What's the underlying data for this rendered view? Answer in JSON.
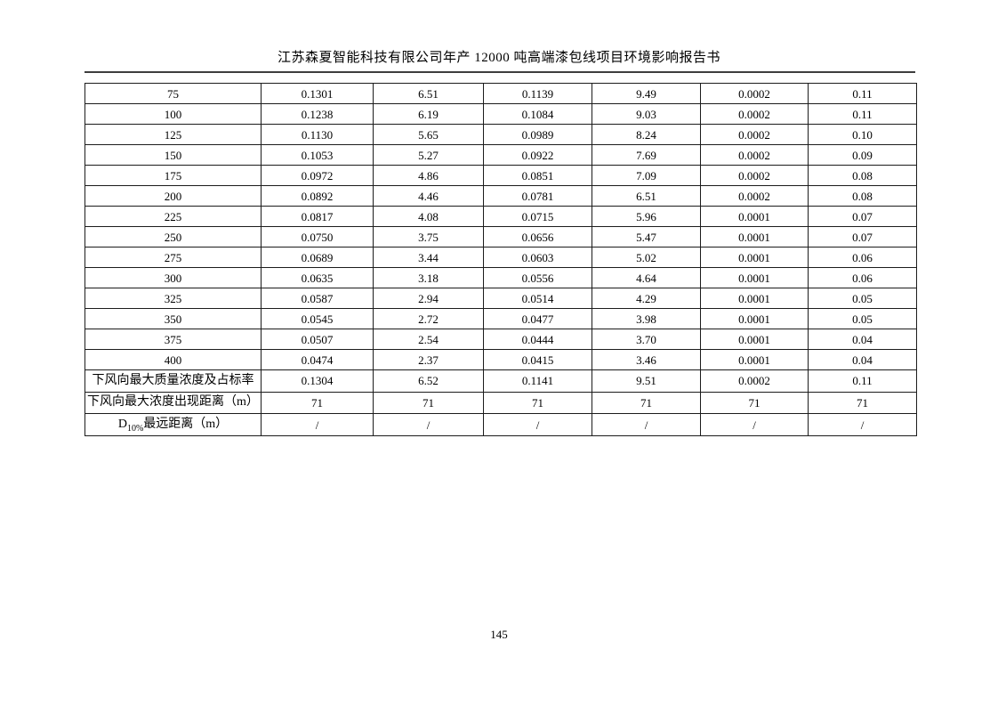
{
  "page": {
    "header_title": "江苏森夏智能科技有限公司年产 12000 吨高端漆包线项目环境影响报告书",
    "page_number": "145"
  },
  "table": {
    "rows": [
      {
        "cells": [
          "75",
          "0.1301",
          "6.51",
          "0.1139",
          "9.49",
          "0.0002",
          "0.11"
        ]
      },
      {
        "cells": [
          "100",
          "0.1238",
          "6.19",
          "0.1084",
          "9.03",
          "0.0002",
          "0.11"
        ]
      },
      {
        "cells": [
          "125",
          "0.1130",
          "5.65",
          "0.0989",
          "8.24",
          "0.0002",
          "0.10"
        ]
      },
      {
        "cells": [
          "150",
          "0.1053",
          "5.27",
          "0.0922",
          "7.69",
          "0.0002",
          "0.09"
        ]
      },
      {
        "cells": [
          "175",
          "0.0972",
          "4.86",
          "0.0851",
          "7.09",
          "0.0002",
          "0.08"
        ]
      },
      {
        "cells": [
          "200",
          "0.0892",
          "4.46",
          "0.0781",
          "6.51",
          "0.0002",
          "0.08"
        ]
      },
      {
        "cells": [
          "225",
          "0.0817",
          "4.08",
          "0.0715",
          "5.96",
          "0.0001",
          "0.07"
        ]
      },
      {
        "cells": [
          "250",
          "0.0750",
          "3.75",
          "0.0656",
          "5.47",
          "0.0001",
          "0.07"
        ]
      },
      {
        "cells": [
          "275",
          "0.0689",
          "3.44",
          "0.0603",
          "5.02",
          "0.0001",
          "0.06"
        ]
      },
      {
        "cells": [
          "300",
          "0.0635",
          "3.18",
          "0.0556",
          "4.64",
          "0.0001",
          "0.06"
        ]
      },
      {
        "cells": [
          "325",
          "0.0587",
          "2.94",
          "0.0514",
          "4.29",
          "0.0001",
          "0.05"
        ]
      },
      {
        "cells": [
          "350",
          "0.0545",
          "2.72",
          "0.0477",
          "3.98",
          "0.0001",
          "0.05"
        ]
      },
      {
        "cells": [
          "375",
          "0.0507",
          "2.54",
          "0.0444",
          "3.70",
          "0.0001",
          "0.04"
        ]
      },
      {
        "cells": [
          "400",
          "0.0474",
          "2.37",
          "0.0415",
          "3.46",
          "0.0001",
          "0.04"
        ]
      },
      {
        "cells": [
          "下风向最大质量浓度及占标率",
          "0.1304",
          "6.52",
          "0.1141",
          "9.51",
          "0.0002",
          "0.11"
        ]
      },
      {
        "cells": [
          "下风向最大浓度出现距离（m）",
          "71",
          "71",
          "71",
          "71",
          "71",
          "71"
        ]
      },
      {
        "cells": [
          {
            "prefix": "D",
            "sub": "10%",
            "text": "最远距离（m）"
          },
          "/",
          "/",
          "/",
          "/",
          "/",
          "/"
        ]
      }
    ]
  }
}
